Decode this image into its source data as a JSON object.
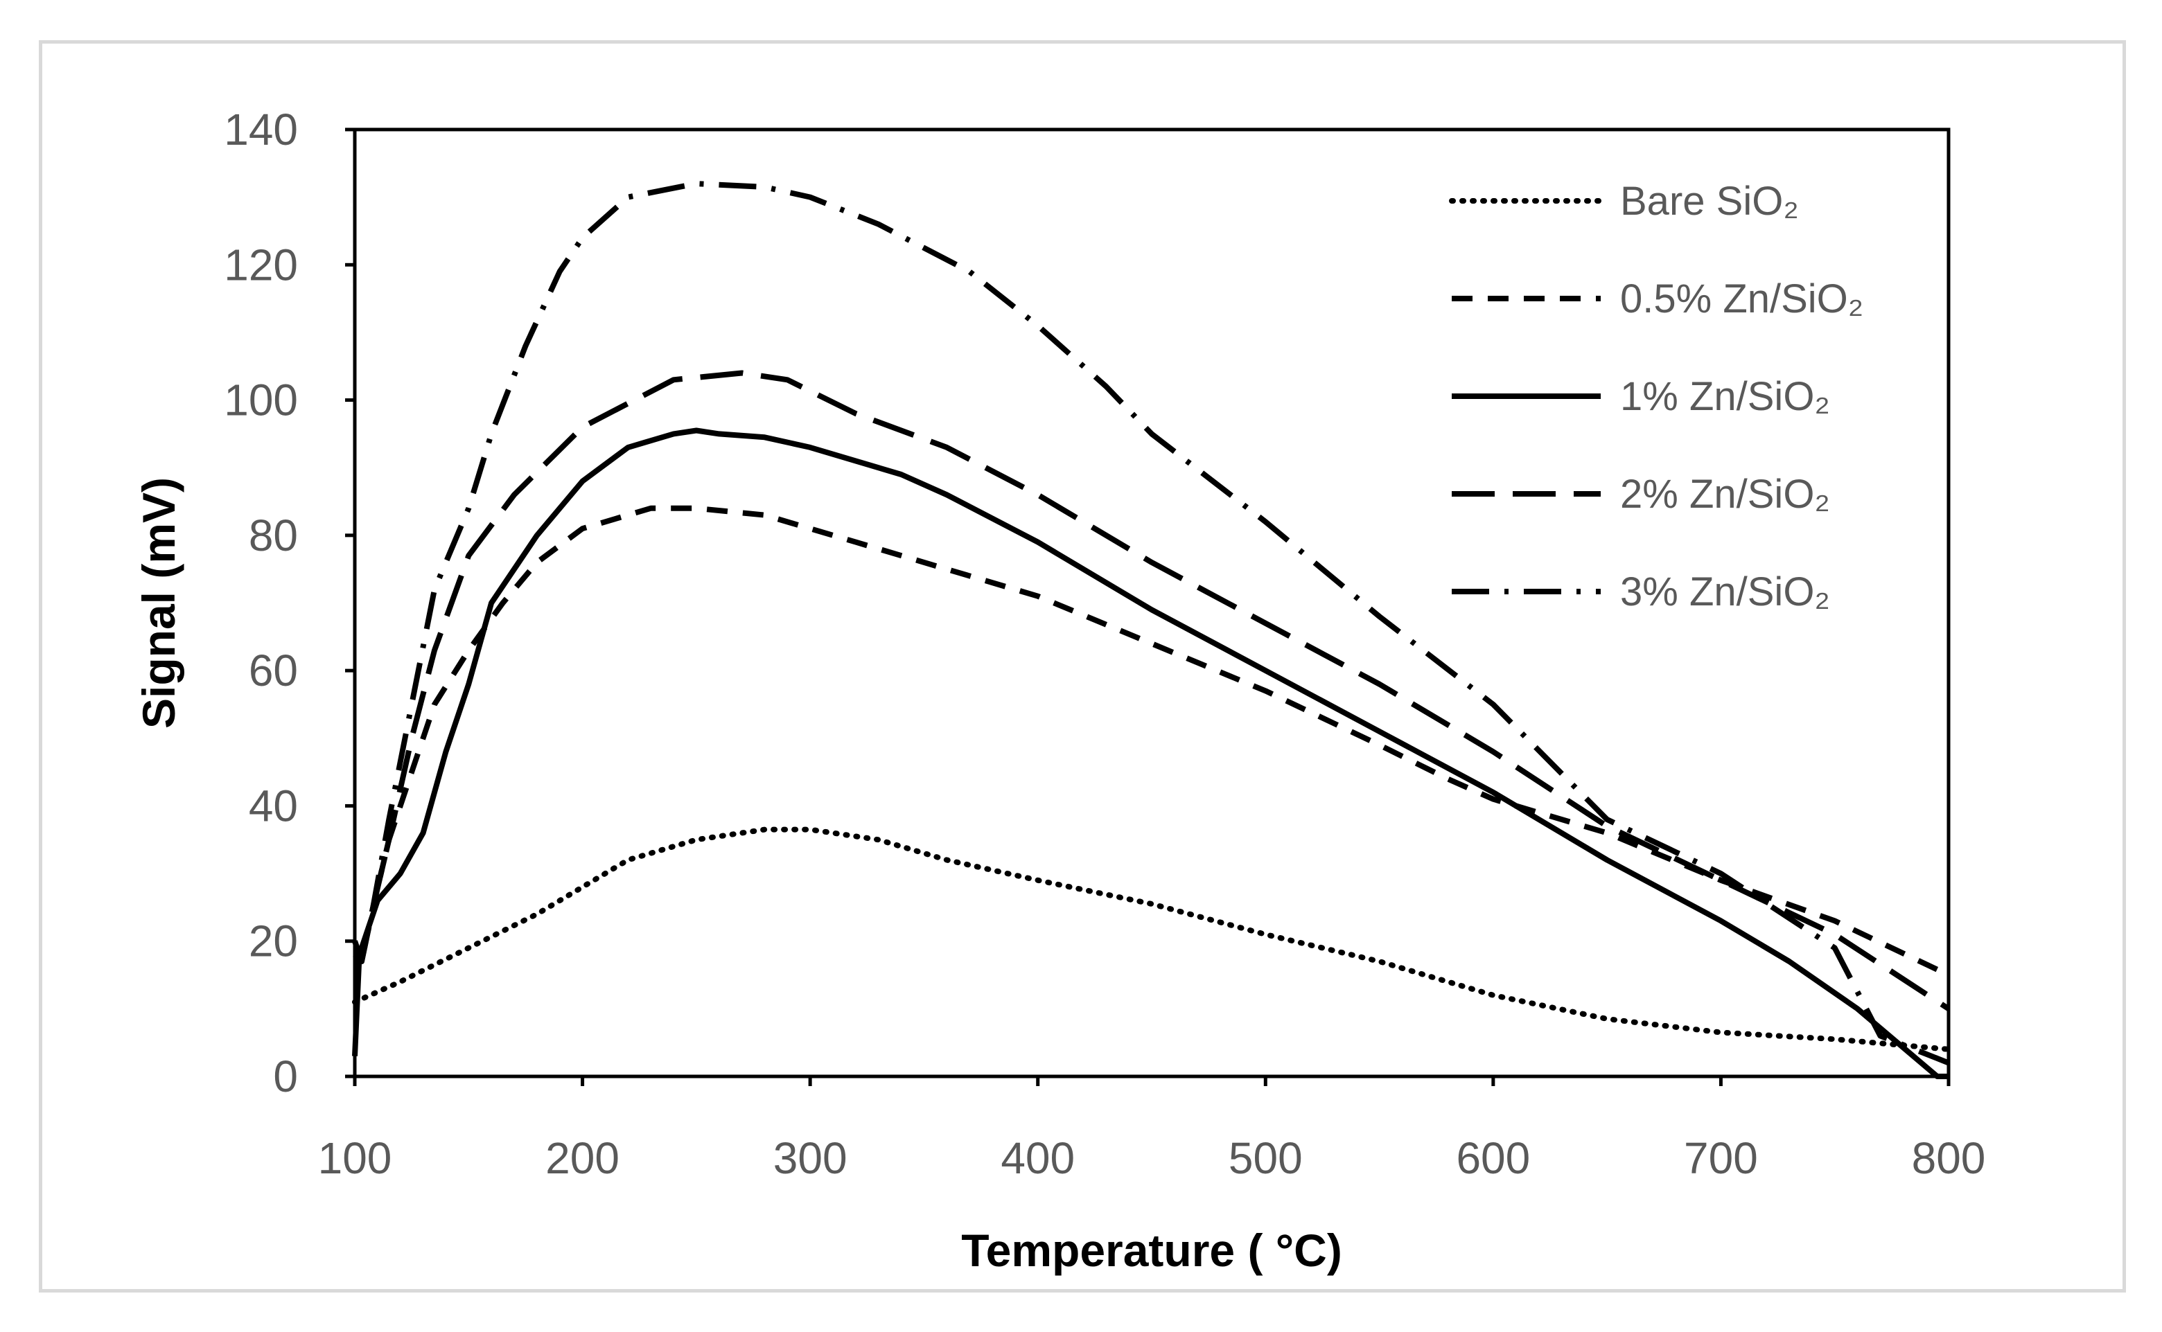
{
  "chart_data": {
    "type": "line",
    "title": "",
    "xlabel": "Temperature ( °C)",
    "ylabel": "Signal (mV)",
    "xlim": [
      100,
      800
    ],
    "ylim": [
      0,
      140
    ],
    "xticks": [
      "100",
      "200",
      "300",
      "400",
      "500",
      "600",
      "700",
      "800"
    ],
    "yticks": [
      "0",
      "20",
      "40",
      "60",
      "80",
      "100",
      "120",
      "140"
    ],
    "grid": false,
    "legend_position": "top-right",
    "series": [
      {
        "name": "Bare SiO₂",
        "style": "dotted",
        "color": "#000000",
        "x": [
          100,
          120,
          150,
          180,
          200,
          220,
          250,
          280,
          300,
          330,
          360,
          400,
          450,
          500,
          550,
          600,
          650,
          700,
          750,
          800
        ],
        "y": [
          11,
          14,
          19,
          24,
          28,
          32,
          35,
          36.5,
          36.5,
          35,
          32,
          29,
          25.5,
          21,
          17,
          12,
          8.5,
          6.5,
          5.5,
          4
        ]
      },
      {
        "name": "0.5% Zn/SiO₂",
        "style": "short-dash",
        "color": "#000000",
        "x": [
          100,
          103,
          108,
          115,
          125,
          135,
          150,
          165,
          180,
          200,
          230,
          250,
          280,
          320,
          360,
          400,
          450,
          500,
          550,
          580,
          600,
          650,
          700,
          750,
          800
        ],
        "y": [
          20,
          17,
          25,
          35,
          45,
          55,
          63,
          70,
          76,
          81,
          84,
          84,
          83,
          79,
          75,
          71,
          64,
          57,
          49,
          44,
          41,
          36,
          29,
          23,
          15
        ]
      },
      {
        "name": "1% Zn/SiO₂",
        "style": "solid",
        "color": "#000000",
        "x": [
          100,
          102,
          105,
          110,
          120,
          130,
          140,
          150,
          160,
          180,
          200,
          220,
          240,
          250,
          260,
          280,
          300,
          340,
          360,
          400,
          450,
          500,
          550,
          600,
          650,
          700,
          730,
          760,
          795,
          800
        ],
        "y": [
          3,
          18,
          21,
          26,
          30,
          36,
          48,
          58,
          70,
          80,
          88,
          93,
          95,
          95.5,
          95,
          94.5,
          93,
          89,
          86,
          79,
          69,
          60,
          51,
          42,
          32,
          23,
          17,
          10,
          0,
          0
        ]
      },
      {
        "name": "2% Zn/SiO₂",
        "style": "long-dash",
        "color": "#000000",
        "x": [
          100,
          103,
          108,
          115,
          125,
          135,
          150,
          170,
          200,
          240,
          270,
          290,
          320,
          360,
          400,
          450,
          500,
          550,
          600,
          650,
          700,
          750,
          800
        ],
        "y": [
          18,
          17,
          25,
          35,
          50,
          63,
          77,
          86,
          96,
          103,
          104,
          103,
          98,
          93,
          86,
          76,
          67,
          58,
          48,
          37,
          29,
          21,
          10
        ]
      },
      {
        "name": "3% Zn/SiO₂",
        "style": "dash-dot",
        "color": "#000000",
        "x": [
          100,
          103,
          108,
          115,
          125,
          135,
          150,
          160,
          175,
          190,
          200,
          220,
          250,
          280,
          300,
          330,
          370,
          400,
          430,
          450,
          500,
          550,
          600,
          650,
          700,
          750,
          770,
          800
        ],
        "y": [
          20,
          17,
          25,
          38,
          55,
          72,
          84,
          95,
          108,
          119,
          124,
          130,
          132,
          131.5,
          130,
          126,
          119,
          111,
          102,
          95,
          82,
          68,
          55,
          38,
          30,
          19,
          6,
          2
        ]
      }
    ]
  }
}
